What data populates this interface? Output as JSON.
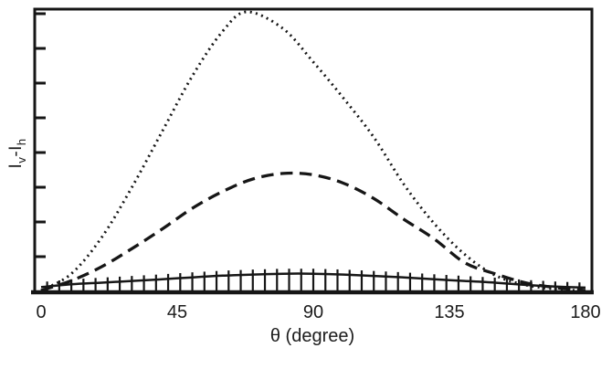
{
  "chart_data": {
    "type": "line",
    "title": "",
    "xlabel": "θ (degree)",
    "ylabel": {
      "base1": "I",
      "sub1": "v",
      "base2": "-I",
      "sub2": "h"
    },
    "x_range": [
      0,
      180
    ],
    "x_ticks": [
      "0",
      "45",
      "90",
      "135",
      "180"
    ],
    "x_tick_values": [
      0,
      45,
      90,
      135,
      180
    ],
    "y_axis": {
      "labels_shown": false,
      "tick_count": 8,
      "units": "arbitrary"
    },
    "grid": false,
    "legend": "none",
    "line_color": "#161616",
    "series": [
      {
        "name": "dotted",
        "style": "dotted",
        "theta": [
          0,
          10,
          20,
          30,
          40,
          50,
          60,
          68,
          80,
          90,
          100,
          110,
          120,
          130,
          140,
          150,
          160,
          170,
          177
        ],
        "values": [
          0,
          0.06,
          0.19,
          0.37,
          0.57,
          0.77,
          0.93,
          1.0,
          0.94,
          0.82,
          0.69,
          0.55,
          0.38,
          0.24,
          0.13,
          0.055,
          0.02,
          0.005,
          0
        ]
      },
      {
        "name": "dashed",
        "style": "dashed",
        "theta": [
          0,
          10,
          20,
          30,
          40,
          50,
          60,
          70,
          80,
          90,
          100,
          110,
          120,
          130,
          140,
          150,
          160,
          170,
          180
        ],
        "values": [
          0,
          0.035,
          0.085,
          0.15,
          0.22,
          0.295,
          0.355,
          0.4,
          0.42,
          0.415,
          0.385,
          0.33,
          0.255,
          0.185,
          0.1,
          0.06,
          0.028,
          0.01,
          0
        ]
      },
      {
        "name": "solid-with-error-bars",
        "style": "solid",
        "theta": [
          0,
          10,
          20,
          30,
          40,
          50,
          60,
          70,
          80,
          90,
          100,
          110,
          120,
          130,
          140,
          150,
          160,
          170,
          180
        ],
        "values": [
          0.012,
          0.022,
          0.028,
          0.034,
          0.04,
          0.047,
          0.053,
          0.057,
          0.06,
          0.06,
          0.057,
          0.052,
          0.047,
          0.04,
          0.034,
          0.028,
          0.02,
          0.014,
          0.01
        ],
        "error_bars": {
          "theta_start": 2,
          "theta_end": 178,
          "theta_step": 4,
          "up": 0.018,
          "down": 0.07
        }
      }
    ]
  }
}
